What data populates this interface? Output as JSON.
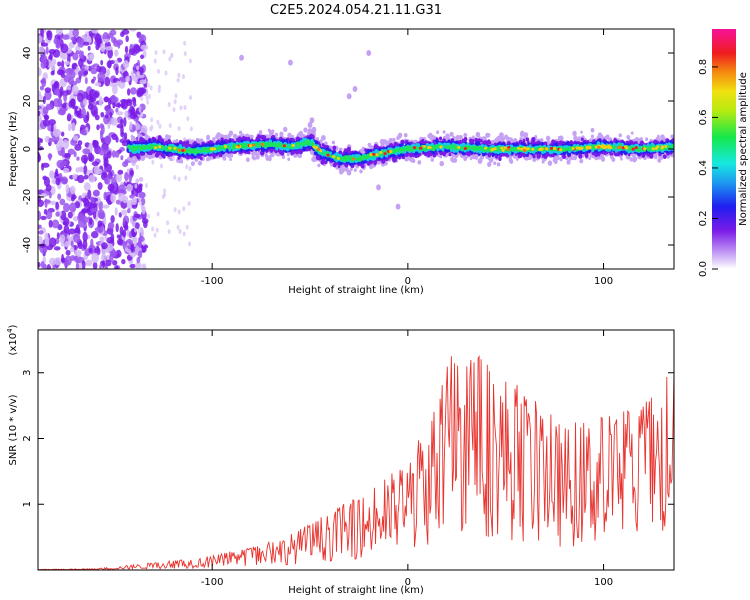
{
  "page_title": "C2E5.2024.054.21.11.G31",
  "chart_data": [
    {
      "type": "heatmap",
      "title": "C2E5.2024.054.21.11.G31",
      "xlabel": "Height of straight line (km)",
      "ylabel": "Frequency (Hz)",
      "xlim": [
        -189,
        136
      ],
      "ylim": [
        -50,
        50
      ],
      "xticks": [
        -100,
        0,
        100
      ],
      "yticks": [
        -40,
        -20,
        0,
        20,
        40
      ],
      "colorbar": {
        "label": "Normalized spectral amplitude",
        "range": [
          0,
          0.95
        ],
        "ticks": [
          "0.0",
          "0.2",
          "0.4",
          "0.6",
          "0.8"
        ],
        "colormap": "white-purple-blue-cyan-green-yellow-orange-red-magenta"
      },
      "ridge_centerline": [
        {
          "x": -142,
          "y": 0
        },
        {
          "x": -130,
          "y": 1
        },
        {
          "x": -110,
          "y": -1
        },
        {
          "x": -90,
          "y": 1
        },
        {
          "x": -70,
          "y": 2
        },
        {
          "x": -60,
          "y": 1
        },
        {
          "x": -50,
          "y": 3
        },
        {
          "x": -45,
          "y": -1
        },
        {
          "x": -35,
          "y": -4
        },
        {
          "x": -25,
          "y": -4
        },
        {
          "x": -15,
          "y": -2
        },
        {
          "x": 0,
          "y": 0
        },
        {
          "x": 20,
          "y": 1
        },
        {
          "x": 40,
          "y": 0
        },
        {
          "x": 60,
          "y": 0
        },
        {
          "x": 80,
          "y": 0
        },
        {
          "x": 100,
          "y": 1
        },
        {
          "x": 120,
          "y": 0
        },
        {
          "x": 136,
          "y": 1
        }
      ],
      "noise_region_x": [
        -189,
        -142
      ]
    },
    {
      "type": "line",
      "xlabel": "Height of straight line (km)",
      "ylabel": "SNR (10 * v/v)",
      "yscale_label": "(x10^4)",
      "xlim": [
        -189,
        136
      ],
      "ylim": [
        0,
        3.65
      ],
      "xticks": [
        -100,
        0,
        100
      ],
      "yticks": [
        1,
        2,
        3
      ],
      "series": [
        {
          "color": "#e8332e",
          "envelope": [
            {
              "x": -189,
              "y": 0.01
            },
            {
              "x": -160,
              "y": 0.02
            },
            {
              "x": -140,
              "y": 0.08
            },
            {
              "x": -120,
              "y": 0.15
            },
            {
              "x": -100,
              "y": 0.22
            },
            {
              "x": -80,
              "y": 0.35
            },
            {
              "x": -60,
              "y": 0.55
            },
            {
              "x": -40,
              "y": 0.9
            },
            {
              "x": -20,
              "y": 1.2
            },
            {
              "x": 0,
              "y": 1.7
            },
            {
              "x": 10,
              "y": 2.3
            },
            {
              "x": 25,
              "y": 3.5
            },
            {
              "x": 40,
              "y": 3.3
            },
            {
              "x": 60,
              "y": 2.7
            },
            {
              "x": 80,
              "y": 2.2
            },
            {
              "x": 100,
              "y": 2.4
            },
            {
              "x": 120,
              "y": 2.5
            },
            {
              "x": 136,
              "y": 3.1
            }
          ]
        }
      ]
    }
  ]
}
